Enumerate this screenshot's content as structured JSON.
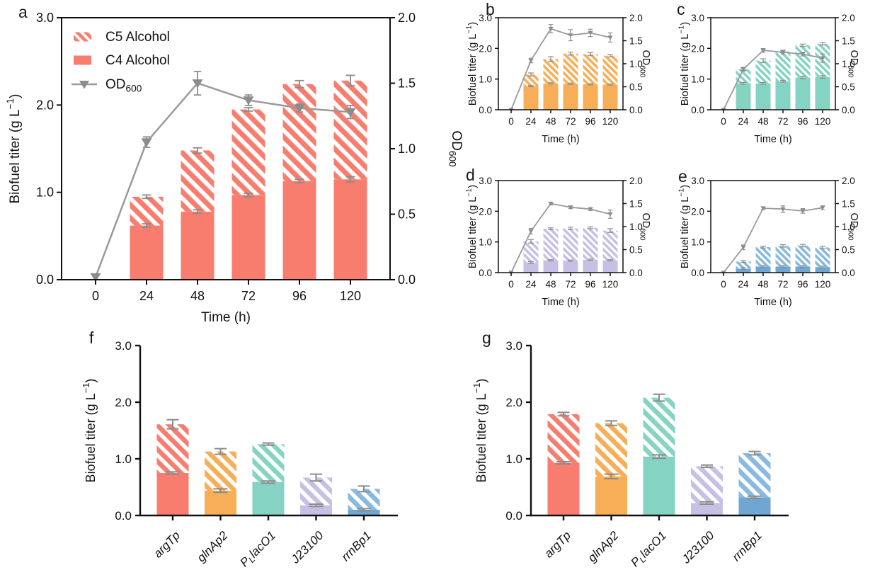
{
  "figure": {
    "background": "#ffffff",
    "axis_color": "#111111",
    "text_color": "#111111"
  },
  "chart_data": [
    {
      "panel": "a",
      "type": "stacked-bar+line",
      "x_categories": [
        "0",
        "24",
        "48",
        "72",
        "96",
        "120"
      ],
      "xlabel": "Time (h)",
      "ylabel_left": {
        "text": "Biofuel titer (g L",
        "sup": "−1",
        "end": ")"
      },
      "ylabel_right": {
        "text": "OD",
        "sub": "600"
      },
      "ylim_left": [
        0,
        3
      ],
      "ylim_right": [
        0,
        2
      ],
      "yticks_left": [
        "0.0",
        "1.0",
        "2.0",
        "3.0"
      ],
      "yticks_right": [
        "0.0",
        "0.5",
        "1.0",
        "1.5",
        "2.0"
      ],
      "legend": [
        {
          "label": "C5 Alcohol",
          "swatch": "hatched"
        },
        {
          "label": "C4 Alcohol",
          "swatch": "solid"
        },
        {
          "label": {
            "text": "OD",
            "sub": "600"
          },
          "swatch": "line-triangle"
        }
      ],
      "bar_color": "#F87D6E",
      "od_line_color": "#9A9A9A",
      "error_color": "#8C8C8C",
      "series": {
        "c4_alcohol": [
          null,
          0.62,
          0.78,
          0.97,
          1.13,
          1.15
        ],
        "c5_alcohol": [
          null,
          0.33,
          0.7,
          0.98,
          1.11,
          1.13
        ],
        "c4_err": [
          null,
          0.02,
          0.02,
          0.02,
          0.02,
          0.03
        ],
        "total_err": [
          null,
          0.02,
          0.03,
          0.02,
          0.04,
          0.06
        ],
        "od600": [
          0.02,
          1.05,
          1.5,
          1.37,
          1.31,
          1.28
        ],
        "od600_err": [
          0.02,
          0.04,
          0.09,
          0.04,
          0.03,
          0.05
        ]
      }
    },
    {
      "panel": "b",
      "type": "stacked-bar+line",
      "x_categories": [
        "0",
        "24",
        "48",
        "72",
        "96",
        "120"
      ],
      "xlabel": "Time (h)",
      "ylabel_left": {
        "text": "Biofuel titer (g L",
        "sup": "−1",
        "end": ")"
      },
      "ylabel_right": {
        "text": "OD",
        "sub": "600"
      },
      "ylim_left": [
        0,
        3
      ],
      "ylim_right": [
        0,
        2
      ],
      "yticks_left": [
        "0.0",
        "1.0",
        "2.0",
        "3.0"
      ],
      "yticks_right": [
        "0.0",
        "0.5",
        "1.0",
        "1.5",
        "2.0"
      ],
      "bar_color": "#F8AE56",
      "od_line_color": "#9A9A9A",
      "error_color": "#8C8C8C",
      "series": {
        "c4_alcohol": [
          null,
          0.77,
          0.86,
          0.85,
          0.83,
          0.82
        ],
        "c5_alcohol": [
          null,
          0.38,
          0.79,
          0.98,
          0.98,
          0.94
        ],
        "c4_err": [
          null,
          0.02,
          0.02,
          0.02,
          0.02,
          0.02
        ],
        "total_err": [
          null,
          0.05,
          0.08,
          0.05,
          0.05,
          0.04
        ],
        "od600": [
          0.0,
          1.07,
          1.76,
          1.62,
          1.67,
          1.57
        ],
        "od600_err": [
          0.0,
          0.05,
          0.09,
          0.12,
          0.08,
          0.1
        ]
      }
    },
    {
      "panel": "c",
      "type": "stacked-bar+line",
      "x_categories": [
        "0",
        "24",
        "48",
        "72",
        "96",
        "120"
      ],
      "xlabel": "Time (h)",
      "ylabel_left": {
        "text": "Biofuel titer (g L",
        "sup": "−1",
        "end": ")"
      },
      "ylabel_right": {
        "text": "OD",
        "sub": "600"
      },
      "ylim_left": [
        0,
        3
      ],
      "ylim_right": [
        0,
        2
      ],
      "yticks_left": [
        "0.0",
        "1.0",
        "2.0",
        "3.0"
      ],
      "yticks_right": [
        "0.0",
        "0.5",
        "1.0",
        "1.5",
        "2.0"
      ],
      "bar_color": "#85D3C3",
      "od_line_color": "#9A9A9A",
      "error_color": "#8C8C8C",
      "series": {
        "c4_alcohol": [
          null,
          0.86,
          0.86,
          0.93,
          1.05,
          1.07
        ],
        "c5_alcohol": [
          null,
          0.47,
          0.74,
          0.97,
          1.05,
          1.08
        ],
        "c4_err": [
          null,
          0.03,
          0.03,
          0.03,
          0.04,
          0.04
        ],
        "total_err": [
          null,
          0.05,
          0.06,
          0.04,
          0.04,
          0.04
        ],
        "od600": [
          0.0,
          0.88,
          1.29,
          1.25,
          1.21,
          1.12
        ],
        "od600_err": [
          0.0,
          0.04,
          0.04,
          0.04,
          0.04,
          0.09
        ]
      }
    },
    {
      "panel": "d",
      "type": "stacked-bar+line",
      "x_categories": [
        "0",
        "24",
        "48",
        "72",
        "96",
        "120"
      ],
      "xlabel": "Time (h)",
      "ylabel_left": {
        "text": "Biofuel titer (g L",
        "sup": "−1",
        "end": ")"
      },
      "ylabel_right": {
        "text": "OD",
        "sub": "600"
      },
      "ylim_left": [
        0,
        3
      ],
      "ylim_right": [
        0,
        2
      ],
      "yticks_left": [
        "0.0",
        "1.0",
        "2.0",
        "3.0"
      ],
      "yticks_right": [
        "0.0",
        "0.5",
        "1.0",
        "1.5",
        "2.0"
      ],
      "bar_color": "#C7C0E4",
      "od_line_color": "#9A9A9A",
      "error_color": "#8C8C8C",
      "series": {
        "c4_alcohol": [
          null,
          0.33,
          0.4,
          0.39,
          0.42,
          0.4
        ],
        "c5_alcohol": [
          null,
          0.69,
          1.03,
          1.05,
          1.04,
          0.97
        ],
        "c4_err": [
          null,
          0.03,
          0.02,
          0.02,
          0.02,
          0.02
        ],
        "total_err": [
          null,
          0.06,
          0.03,
          0.04,
          0.03,
          0.06
        ],
        "od600": [
          0.0,
          0.9,
          1.5,
          1.42,
          1.38,
          1.27
        ],
        "od600_err": [
          0.0,
          0.06,
          0.03,
          0.03,
          0.03,
          0.09
        ]
      }
    },
    {
      "panel": "e",
      "type": "stacked-bar+line",
      "x_categories": [
        "0",
        "24",
        "48",
        "72",
        "96",
        "120"
      ],
      "xlabel": "Time (h)",
      "ylabel_left": {
        "text": "Biofuel titer (g L",
        "sup": "−1",
        "end": ")"
      },
      "ylabel_right": {
        "text": "OD",
        "sub": "600"
      },
      "ylim_left": [
        0,
        3
      ],
      "ylim_right": [
        0,
        2
      ],
      "yticks_left": [
        "0.0",
        "1.0",
        "2.0",
        "3.0"
      ],
      "yticks_right": [
        "0.0",
        "0.5",
        "1.0",
        "1.5",
        "2.0"
      ],
      "bar_color": "#88B9E0",
      "bar_color_solid": "#6FA6D2",
      "od_line_color": "#9A9A9A",
      "error_color": "#8C8C8C",
      "series": {
        "c4_alcohol": [
          null,
          0.13,
          0.2,
          0.2,
          0.2,
          0.18
        ],
        "c5_alcohol": [
          null,
          0.23,
          0.63,
          0.67,
          0.68,
          0.64
        ],
        "c4_err": [
          null,
          0.03,
          0.03,
          0.03,
          0.03,
          0.03
        ],
        "total_err": [
          null,
          0.03,
          0.03,
          0.04,
          0.04,
          0.04
        ],
        "od600": [
          0.0,
          0.55,
          1.4,
          1.38,
          1.34,
          1.41
        ],
        "od600_err": [
          0.0,
          0.05,
          0.03,
          0.07,
          0.05,
          0.04
        ]
      }
    },
    {
      "panel": "f",
      "type": "stacked-bar",
      "categories": [
        {
          "t": "argTp"
        },
        {
          "t": "glnAp2"
        },
        {
          "t": "P",
          "sub": "L",
          "t2": "lacO1"
        },
        {
          "t": "J23100"
        },
        {
          "t": "rrnBp1"
        }
      ],
      "categories_italic": true,
      "ylabel": {
        "text": "Biofuel titer (g L",
        "sup": "−1",
        "end": ")"
      },
      "ylim": [
        0,
        3
      ],
      "yticks": [
        "0.0",
        "1.0",
        "2.0",
        "3.0"
      ],
      "bar_colors_solid": [
        "#F87D6E",
        "#F8AE56",
        "#85D3C3",
        "#C7C0E4",
        "#6FA6D2"
      ],
      "bar_colors_hatch": [
        "#F87D6E",
        "#F8AE56",
        "#85D3C3",
        "#C7C0E4",
        "#88B9E0"
      ],
      "error_color": "#8C8C8C",
      "series": {
        "c4_alcohol": [
          0.75,
          0.44,
          0.59,
          0.18,
          0.1
        ],
        "c5_alcohol": [
          0.86,
          0.69,
          0.67,
          0.49,
          0.37
        ],
        "c4_err": [
          0.02,
          0.03,
          0.02,
          0.02,
          0.02
        ],
        "total_err": [
          0.08,
          0.05,
          0.02,
          0.06,
          0.05
        ]
      }
    },
    {
      "panel": "g",
      "type": "stacked-bar",
      "categories": [
        {
          "t": "argTp"
        },
        {
          "t": "glnAp2"
        },
        {
          "t": "P",
          "sub": "L",
          "t2": "lacO1"
        },
        {
          "t": "J23100"
        },
        {
          "t": "rrnBp1"
        }
      ],
      "categories_italic": true,
      "ylabel": {
        "text": "Biofuel titer (g L",
        "sup": "−1",
        "end": ")"
      },
      "ylim": [
        0,
        3
      ],
      "yticks": [
        "0.0",
        "1.0",
        "2.0",
        "3.0"
      ],
      "bar_colors_solid": [
        "#F87D6E",
        "#F8AE56",
        "#85D3C3",
        "#C7C0E4",
        "#6FA6D2"
      ],
      "bar_colors_hatch": [
        "#F87D6E",
        "#F8AE56",
        "#85D3C3",
        "#C7C0E4",
        "#88B9E0"
      ],
      "error_color": "#8C8C8C",
      "series": {
        "c4_alcohol": [
          0.93,
          0.69,
          1.04,
          0.22,
          0.32
        ],
        "c5_alcohol": [
          0.86,
          0.94,
          1.04,
          0.65,
          0.78
        ],
        "c4_err": [
          0.02,
          0.04,
          0.03,
          0.02,
          0.02
        ],
        "total_err": [
          0.03,
          0.04,
          0.06,
          0.02,
          0.03
        ]
      }
    }
  ]
}
